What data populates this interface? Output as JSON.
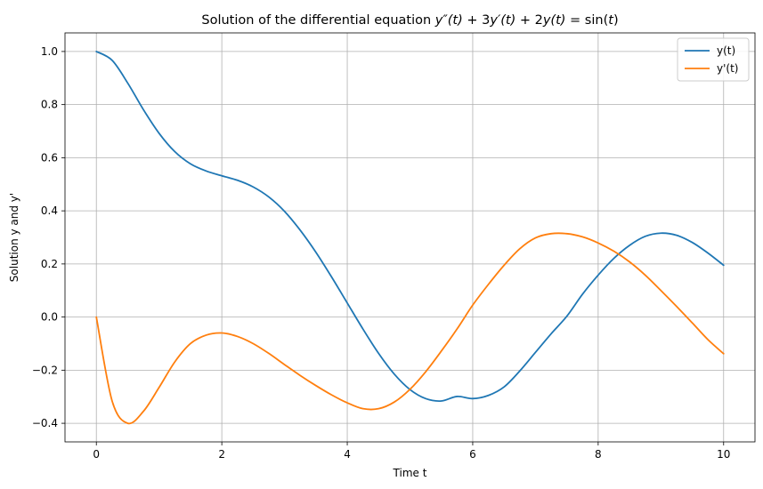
{
  "chart_data": {
    "type": "line",
    "title": "Solution of the differential equation y″(t) + 3y′(t) + 2y(t) = sin(t)",
    "xlabel": "Time t",
    "ylabel": "Solution y and y'",
    "xlim": [
      -0.5,
      10.5
    ],
    "ylim": [
      -0.47,
      1.07
    ],
    "xticks": [
      0,
      2,
      4,
      6,
      8,
      10
    ],
    "xtick_labels": [
      "0",
      "2",
      "4",
      "6",
      "8",
      "10"
    ],
    "yticks": [
      -0.4,
      -0.2,
      0.0,
      0.2,
      0.4,
      0.6,
      0.8,
      1.0
    ],
    "ytick_labels": [
      "−0.4",
      "−0.2",
      "0.0",
      "0.2",
      "0.4",
      "0.6",
      "0.8",
      "1.0"
    ],
    "grid": true,
    "legend_position": "top-right",
    "x": [
      0,
      0.25,
      0.5,
      0.75,
      1,
      1.25,
      1.5,
      1.75,
      2,
      2.25,
      2.5,
      2.75,
      3,
      3.25,
      3.5,
      3.75,
      4,
      4.25,
      4.5,
      4.75,
      5,
      5.25,
      5.5,
      5.75,
      6,
      6.25,
      6.5,
      6.75,
      7,
      7.25,
      7.5,
      7.75,
      8,
      8.25,
      8.5,
      8.75,
      9,
      9.25,
      9.5,
      9.75,
      10
    ],
    "series": [
      {
        "name": "y(t)",
        "color": "#1f77b4",
        "values": [
          1.0,
          0.967,
          0.881,
          0.781,
          0.692,
          0.623,
          0.577,
          0.55,
          0.532,
          0.515,
          0.49,
          0.452,
          0.398,
          0.327,
          0.244,
          0.151,
          0.053,
          -0.045,
          -0.137,
          -0.215,
          -0.273,
          -0.307,
          -0.316,
          -0.299,
          -0.307,
          -0.295,
          -0.263,
          -0.203,
          -0.133,
          -0.063,
          0.003,
          0.086,
          0.158,
          0.221,
          0.27,
          0.304,
          0.316,
          0.308,
          0.281,
          0.241,
          0.195
        ]
      },
      {
        "name": "y'(t)",
        "color": "#ff7f0e",
        "values": [
          0.0,
          -0.315,
          -0.4,
          -0.355,
          -0.265,
          -0.169,
          -0.1,
          -0.068,
          -0.06,
          -0.073,
          -0.1,
          -0.137,
          -0.179,
          -0.22,
          -0.258,
          -0.293,
          -0.323,
          -0.345,
          -0.345,
          -0.32,
          -0.272,
          -0.206,
          -0.128,
          -0.045,
          0.045,
          0.123,
          0.195,
          0.257,
          0.298,
          0.314,
          0.314,
          0.302,
          0.279,
          0.248,
          0.208,
          0.158,
          0.1,
          0.04,
          -0.022,
          -0.085,
          -0.138
        ]
      }
    ]
  }
}
